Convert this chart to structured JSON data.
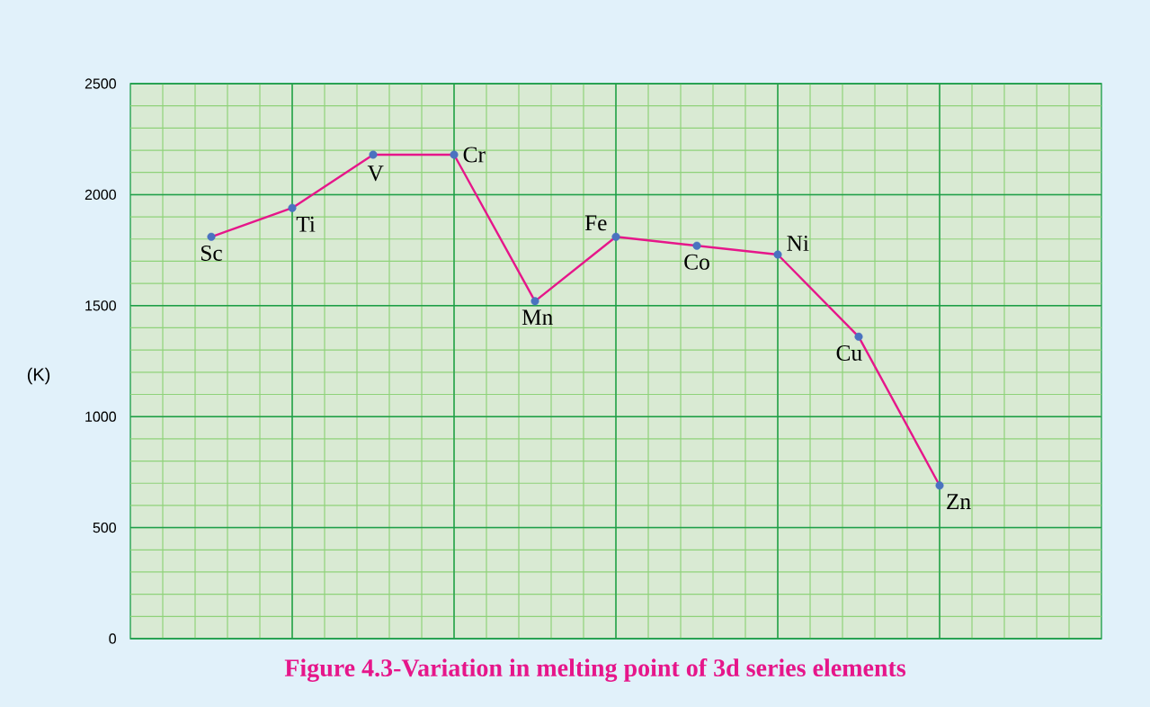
{
  "chart_data": {
    "type": "line",
    "title": "Figure 4.3-Variation in melting point of 3d series elements",
    "ylabel": "(K)",
    "categories": [
      null,
      null,
      null,
      null,
      null,
      null,
      null,
      null,
      null,
      null
    ],
    "annotations": [
      "Sc",
      "Ti",
      "V",
      "Cr",
      "Mn",
      "Fe",
      "Co",
      "Ni",
      "Cu",
      "Zn"
    ],
    "series": [
      {
        "color": "#e6168a",
        "colors": [
          "#4a72c0",
          "#4a72c0",
          "#4a72c0",
          "#4a72c0",
          "#4a72c0",
          "#4a72c0",
          "#4a72c0",
          "#4a72c0",
          "#4a72c0",
          "#4a72c0"
        ],
        "values": [
          1810,
          1940,
          2180,
          2180,
          1520,
          1810,
          1770,
          1730,
          1360,
          690
        ]
      }
    ],
    "ylim": [
      0,
      2500
    ],
    "yticks": [
      0,
      500,
      1000,
      1500,
      2000,
      2500
    ],
    "grid": true,
    "marker": "circle",
    "line_style": "solid",
    "tick_labels": "y"
  }
}
